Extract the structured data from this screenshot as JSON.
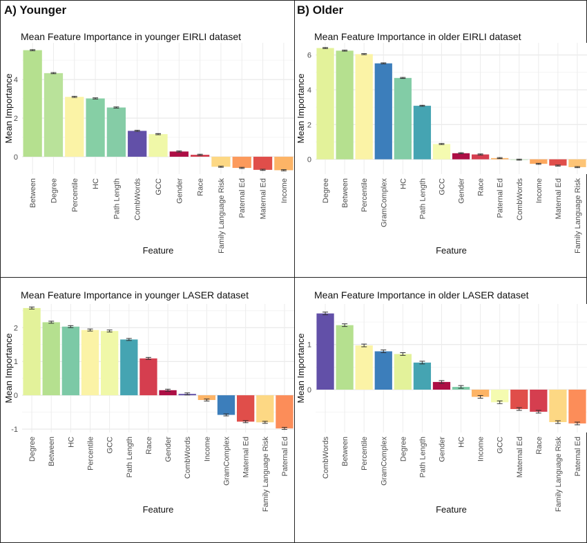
{
  "panels": {
    "a_label": "A)",
    "a_title": "Younger",
    "b_label": "B)",
    "b_title": "Older"
  },
  "chart_data": [
    {
      "type": "bar",
      "title": "Mean Feature Importance in younger EIRLI dataset",
      "xlabel": "Feature",
      "ylabel": "Mean Importance",
      "ylim": [
        -0.9,
        5.9
      ],
      "yticks": [
        0,
        2,
        4
      ],
      "grid": true,
      "categories": [
        "Between",
        "Degree",
        "Percentile",
        "HC",
        "Path Length",
        "CombWords",
        "GCC",
        "Gender",
        "Race",
        "Family Language Risk",
        "Paternal Ed",
        "Maternal Ed",
        "Income"
      ],
      "values": [
        5.52,
        4.33,
        3.1,
        3.02,
        2.55,
        1.34,
        1.17,
        0.27,
        0.1,
        -0.52,
        -0.58,
        -0.68,
        -0.7
      ],
      "error": [
        0.03,
        0.03,
        0.03,
        0.03,
        0.03,
        0.03,
        0.03,
        0.03,
        0.03,
        0.03,
        0.03,
        0.03,
        0.03
      ],
      "colors": [
        "#b5e08f",
        "#b9e29a",
        "#fbf3a6",
        "#86cfa5",
        "#85cca6",
        "#6250a8",
        "#f0f8a8",
        "#ad0f45",
        "#d53e4f",
        "#fdd884",
        "#fc9a5c",
        "#e04e4a",
        "#fdb466"
      ]
    },
    {
      "type": "bar",
      "title": "Mean Feature Importance in older EIRLI dataset",
      "xlabel": "Feature",
      "ylabel": "Mean Importance",
      "ylim": [
        -0.85,
        6.7
      ],
      "yticks": [
        0,
        2,
        4,
        6
      ],
      "grid": true,
      "categories": [
        "Degree",
        "Between",
        "Percentile",
        "GramComplex",
        "HC",
        "Path Length",
        "GCC",
        "Gender",
        "Race",
        "Paternal Ed",
        "CombWords",
        "Income",
        "Maternal Ed",
        "Family Language Risk"
      ],
      "values": [
        6.4,
        6.25,
        6.05,
        5.52,
        4.68,
        3.08,
        0.88,
        0.35,
        0.28,
        0.07,
        -0.02,
        -0.26,
        -0.36,
        -0.45
      ],
      "error": [
        0.03,
        0.03,
        0.03,
        0.03,
        0.03,
        0.03,
        0.03,
        0.03,
        0.03,
        0.03,
        0.03,
        0.03,
        0.03,
        0.03
      ],
      "colors": [
        "#e3f29a",
        "#b5e08f",
        "#fbf3a6",
        "#3c7ebb",
        "#82cca6",
        "#45a4b2",
        "#f5fbb0",
        "#ad0f45",
        "#d53e4f",
        "#fdb466",
        "#d2eccf",
        "#fda95f",
        "#e04e4a",
        "#fdc476"
      ]
    },
    {
      "type": "bar",
      "title": "Mean Feature Importance in younger LASER dataset",
      "xlabel": "Feature",
      "ylabel": "Mean Importance",
      "ylim": [
        -1.1,
        2.7
      ],
      "yticks": [
        -1,
        0,
        1,
        2
      ],
      "grid": true,
      "categories": [
        "Degree",
        "Between",
        "HC",
        "Percentile",
        "GCC",
        "Path Length",
        "Race",
        "Gender",
        "CombWords",
        "Income",
        "GramComplex",
        "Maternal Ed",
        "Family Language Risk",
        "Paternal Ed"
      ],
      "values": [
        2.58,
        2.16,
        2.03,
        1.93,
        1.9,
        1.65,
        1.09,
        0.15,
        0.04,
        -0.14,
        -0.58,
        -0.78,
        -0.8,
        -0.98
      ],
      "error": [
        0.03,
        0.03,
        0.03,
        0.03,
        0.03,
        0.03,
        0.03,
        0.03,
        0.03,
        0.03,
        0.03,
        0.03,
        0.03,
        0.03
      ],
      "colors": [
        "#e3f29a",
        "#b5e08f",
        "#7cc9a6",
        "#fbf3a6",
        "#f0f8a8",
        "#45a4b2",
        "#d53e4f",
        "#ad0f45",
        "#6250a8",
        "#fdb466",
        "#3c7ebb",
        "#e04e4a",
        "#fdd884",
        "#fc8d59"
      ]
    },
    {
      "type": "bar",
      "title": "Mean Feature Importance in older LASER dataset",
      "xlabel": "Feature",
      "ylabel": "Mean Importance",
      "ylim": [
        -0.95,
        1.9
      ],
      "yticks": [
        0,
        1
      ],
      "grid": true,
      "categories": [
        "CombWords",
        "Between",
        "Percentile",
        "GramComplex",
        "Degree",
        "Path Length",
        "Gender",
        "HC",
        "Income",
        "GCC",
        "Maternal Ed",
        "Race",
        "Family Language Risk",
        "Paternal Ed"
      ],
      "values": [
        1.69,
        1.43,
        0.98,
        0.85,
        0.79,
        0.6,
        0.17,
        0.06,
        -0.16,
        -0.28,
        -0.43,
        -0.49,
        -0.72,
        -0.75
      ],
      "error": [
        0.03,
        0.03,
        0.03,
        0.03,
        0.03,
        0.03,
        0.03,
        0.03,
        0.03,
        0.03,
        0.03,
        0.03,
        0.03,
        0.03
      ],
      "colors": [
        "#6250a8",
        "#b5e08f",
        "#fbf3a6",
        "#3c7ebb",
        "#e3f29a",
        "#45a4b2",
        "#ad0f45",
        "#7cc9a6",
        "#fdb466",
        "#f5fbb0",
        "#e04e4a",
        "#d53e4f",
        "#fdd884",
        "#fc8d59"
      ]
    }
  ]
}
